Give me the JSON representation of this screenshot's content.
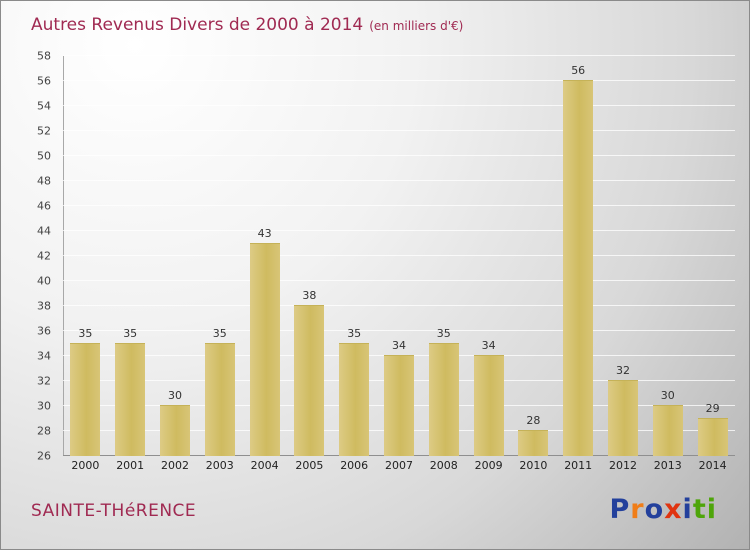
{
  "header": {
    "title": "Autres Revenus Divers de 2000 à 2014",
    "subtitle": "(en milliers d'€)"
  },
  "footer": {
    "location": "SAINTE-THéRENCE",
    "logo": {
      "name": "Proxiti",
      "letters": [
        {
          "ch": "P",
          "color": "#23409c"
        },
        {
          "ch": "r",
          "color": "#f07d18"
        },
        {
          "ch": "o",
          "color": "#23409c"
        },
        {
          "ch": "x",
          "color": "#e03410"
        },
        {
          "ch": "i",
          "color": "#23409c"
        },
        {
          "ch": "t",
          "color": "#4ea50a"
        },
        {
          "ch": "i",
          "color": "#4ea50a"
        }
      ]
    }
  },
  "colors": {
    "title": "#a02a52",
    "bar": "#d2bf68",
    "grid": "#ffffff",
    "axis": "#8f8f8f"
  },
  "chart_data": {
    "type": "bar",
    "title": "Autres Revenus Divers de 2000 à 2014",
    "subtitle": "(en milliers d'€)",
    "categories": [
      "2000",
      "2001",
      "2002",
      "2003",
      "2004",
      "2005",
      "2006",
      "2007",
      "2008",
      "2009",
      "2010",
      "2011",
      "2012",
      "2013",
      "2014"
    ],
    "values": [
      35,
      35,
      30,
      35,
      43,
      38,
      35,
      34,
      35,
      34,
      28,
      56,
      32,
      30,
      29
    ],
    "ylim": [
      26,
      58
    ],
    "ytick_step": 2,
    "yticks": [
      26,
      28,
      30,
      32,
      34,
      36,
      38,
      40,
      42,
      44,
      46,
      48,
      50,
      52,
      54,
      56,
      58
    ],
    "grid": true,
    "legend": "none",
    "value_labels": true,
    "xlabel": "",
    "ylabel": ""
  }
}
